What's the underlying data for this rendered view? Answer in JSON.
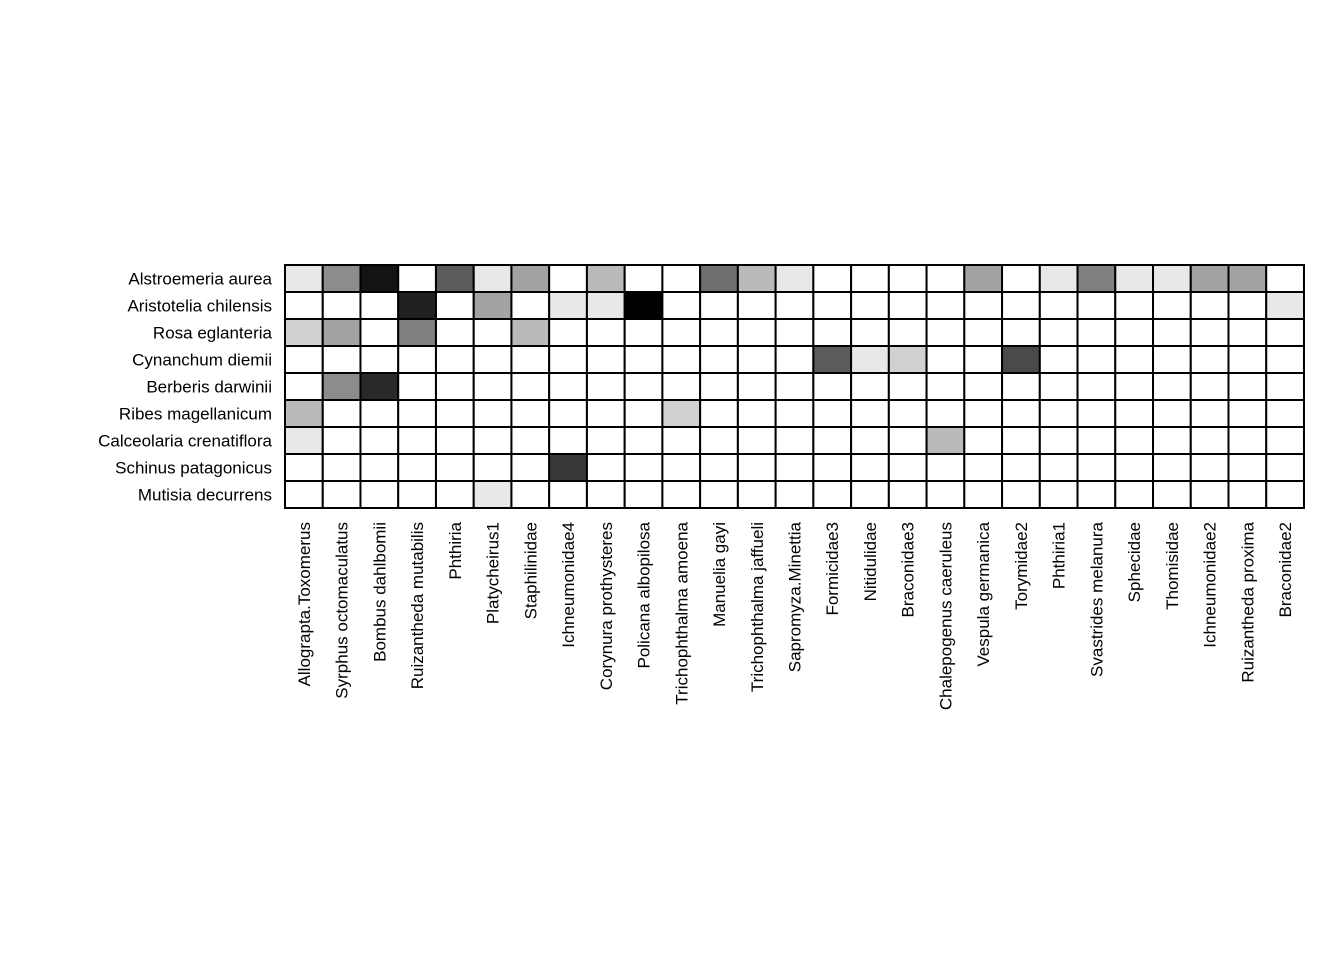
{
  "chart_data": {
    "type": "heatmap",
    "title": "",
    "xlabel": "",
    "ylabel": "",
    "grid": true,
    "colors": {
      "low": "#ffffff",
      "high": "#000000",
      "border": "#000000"
    },
    "rows": [
      "Alstroemeria aurea",
      "Aristotelia chilensis",
      "Rosa eglanteria",
      "Cynanchum diemii",
      "Berberis darwinii",
      "Ribes magellanicum",
      "Calceolaria crenatiflora",
      "Schinus patagonicus",
      "Mutisia decurrens"
    ],
    "columns": [
      "Allograpta.Toxomerus",
      "Syrphus octomaculatus",
      "Bombus dahlbomii",
      "Ruizantheda mutabilis",
      "Phthiria",
      "Platycheirus1",
      "Staphilinidae",
      "Ichneumonidae4",
      "Corynura prothysteres",
      "Policana albopilosa",
      "Trichophthalma amoena",
      "Manuelia gayi",
      "Trichophthalma jaffueli",
      "Sapromyza.Minettia",
      "Formicidae3",
      "Nitidulidae",
      "Braconidae3",
      "Chalepogenus caeruleus",
      "Vespula germanica",
      "Torymidae2",
      "Phthiria1",
      "Svastrides melanura",
      "Sphecidae",
      "Thomisidae",
      "Ichneumonidae2",
      "Ruizantheda proxima",
      "Braconidae2"
    ],
    "values": [
      [
        0.09,
        0.45,
        0.92,
        0,
        0.64,
        0.09,
        0.36,
        0,
        0.27,
        0,
        0,
        0.57,
        0.27,
        0.09,
        0,
        0,
        0,
        0,
        0.36,
        0,
        0.09,
        0.5,
        0.09,
        0.09,
        0.36,
        0.36,
        0
      ],
      [
        0,
        0,
        0,
        0.87,
        0,
        0.36,
        0,
        0.09,
        0.09,
        1.0,
        0,
        0,
        0,
        0,
        0,
        0,
        0,
        0,
        0,
        0,
        0,
        0,
        0,
        0,
        0,
        0,
        0.09
      ],
      [
        0.18,
        0.36,
        0,
        0.5,
        0,
        0,
        0.27,
        0,
        0,
        0,
        0,
        0,
        0,
        0,
        0,
        0,
        0,
        0,
        0,
        0,
        0,
        0,
        0,
        0,
        0,
        0,
        0
      ],
      [
        0,
        0,
        0,
        0,
        0,
        0,
        0,
        0,
        0,
        0,
        0,
        0,
        0,
        0,
        0.64,
        0.09,
        0.18,
        0,
        0,
        0.71,
        0,
        0,
        0,
        0,
        0,
        0,
        0
      ],
      [
        0,
        0.45,
        0.84,
        0,
        0,
        0,
        0,
        0,
        0,
        0,
        0,
        0,
        0,
        0,
        0,
        0,
        0,
        0,
        0,
        0,
        0,
        0,
        0,
        0,
        0,
        0,
        0
      ],
      [
        0.27,
        0,
        0,
        0,
        0,
        0,
        0,
        0,
        0,
        0,
        0.18,
        0,
        0,
        0,
        0,
        0,
        0,
        0,
        0,
        0,
        0,
        0,
        0,
        0,
        0,
        0,
        0
      ],
      [
        0.09,
        0,
        0,
        0,
        0,
        0,
        0,
        0,
        0,
        0,
        0,
        0,
        0,
        0,
        0,
        0,
        0,
        0.27,
        0,
        0,
        0,
        0,
        0,
        0,
        0,
        0,
        0
      ],
      [
        0,
        0,
        0,
        0,
        0,
        0,
        0,
        0.78,
        0,
        0,
        0,
        0,
        0,
        0,
        0,
        0,
        0,
        0,
        0,
        0,
        0,
        0,
        0,
        0,
        0,
        0,
        0
      ],
      [
        0,
        0,
        0,
        0,
        0,
        0.09,
        0,
        0,
        0,
        0,
        0,
        0,
        0,
        0,
        0,
        0,
        0,
        0,
        0,
        0,
        0,
        0,
        0,
        0,
        0,
        0,
        0
      ]
    ]
  }
}
